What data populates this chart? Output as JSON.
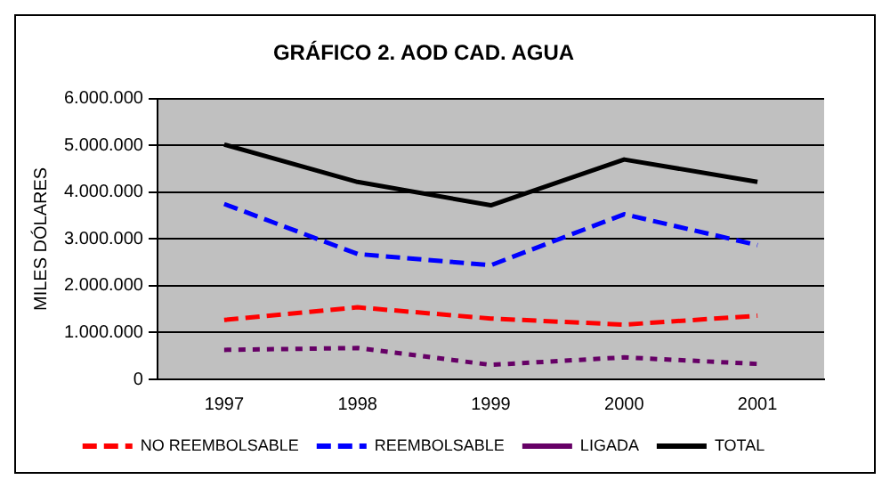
{
  "chart_data": {
    "type": "line",
    "title": "GRÁFICO 2. AOD CAD. AGUA",
    "ylabel": "MILES DÓLARES",
    "categories": [
      "1997",
      "1998",
      "1999",
      "2000",
      "2001"
    ],
    "series": [
      {
        "name": "NO REEMBOLSABLE",
        "color": "#ff0000",
        "line_style": "dashed",
        "values": [
          1270000,
          1540000,
          1300000,
          1170000,
          1360000
        ]
      },
      {
        "name": "REEMBOLSABLE",
        "color": "#0000ff",
        "line_style": "dashed",
        "values": [
          3750000,
          2680000,
          2440000,
          3530000,
          2870000
        ]
      },
      {
        "name": "LIGADA",
        "color": "#660066",
        "line_style": "dotted",
        "values": [
          630000,
          670000,
          310000,
          470000,
          330000
        ]
      },
      {
        "name": "TOTAL",
        "color": "#000000",
        "line_style": "solid",
        "values": [
          5020000,
          4220000,
          3720000,
          4700000,
          4220000
        ]
      }
    ],
    "ylim": [
      0,
      6000000
    ],
    "yticks": [
      {
        "value": 0,
        "label": "0"
      },
      {
        "value": 1000000,
        "label": "1.000.000"
      },
      {
        "value": 2000000,
        "label": "2.000.000"
      },
      {
        "value": 3000000,
        "label": "3.000.000"
      },
      {
        "value": 4000000,
        "label": "4.000.000"
      },
      {
        "value": 5000000,
        "label": "5.000.000"
      },
      {
        "value": 6000000,
        "label": "6.000.000"
      }
    ],
    "grid": "y",
    "legend": "bottom",
    "marker": "none"
  }
}
